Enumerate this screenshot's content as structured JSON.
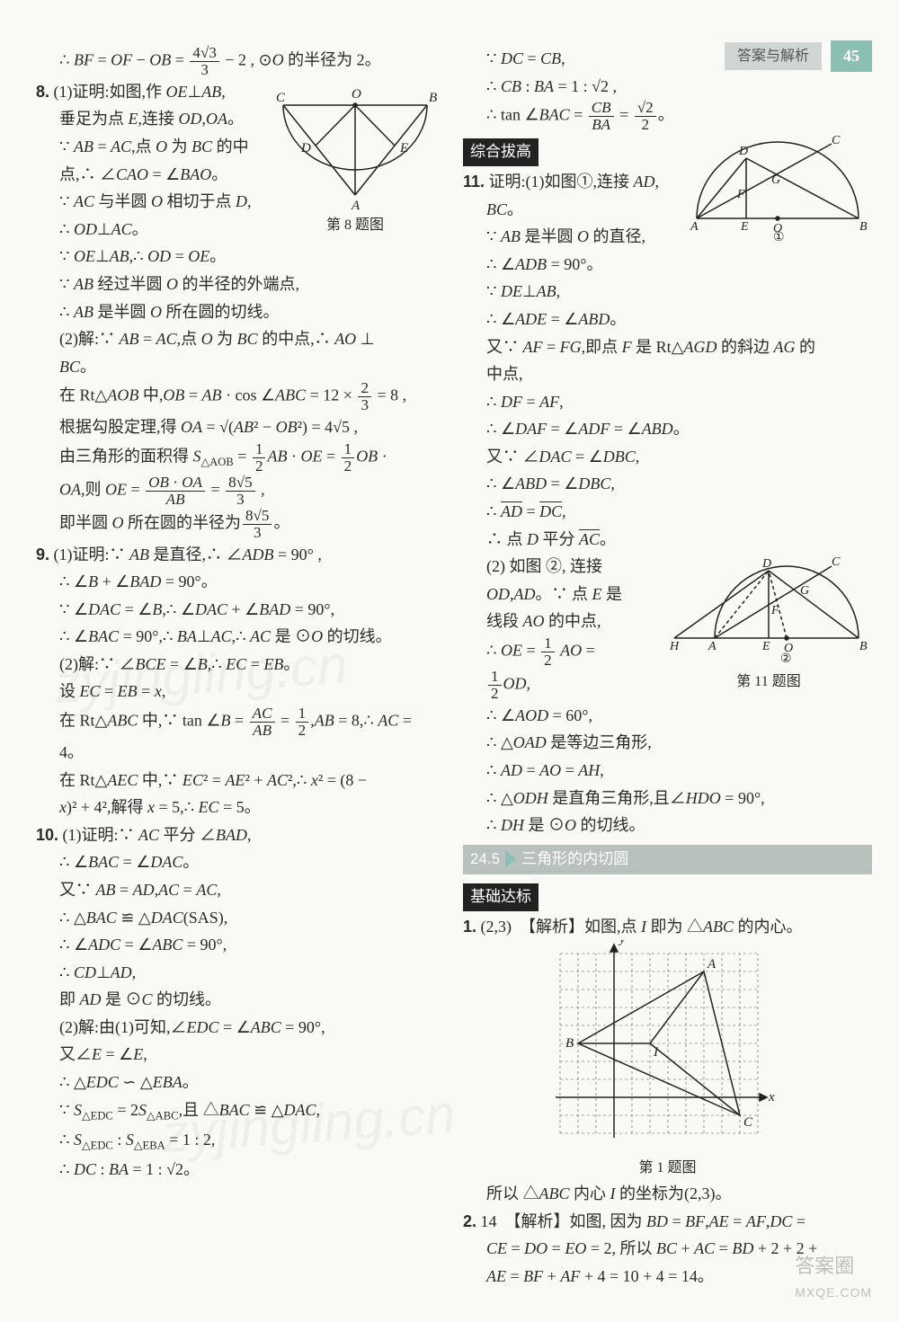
{
  "header": {
    "label": "答案与解析",
    "page": "45"
  },
  "watermarks": {
    "text": "zyjingling.cn"
  },
  "logo": {
    "main": "答案圈",
    "site": "MXQE.COM"
  },
  "sections": {
    "comprehensive": "综合拔高",
    "s245_num": "24.5",
    "s245_title": "三角形的内切圆",
    "basic": "基础达标"
  },
  "figs": {
    "q8_cap": "第 8 题图",
    "q8": {
      "labels": {
        "A": "A",
        "B": "B",
        "C": "C",
        "D": "D",
        "E": "E",
        "O": "O"
      },
      "colors": {
        "stroke": "#222"
      }
    },
    "q11_cap": "第 11 题图",
    "q11a": {
      "labels": {
        "A": "A",
        "B": "B",
        "C": "C",
        "D": "D",
        "E": "E",
        "F": "F",
        "G": "G",
        "O": "O",
        "num": "①"
      },
      "colors": {
        "stroke": "#222"
      }
    },
    "q11b": {
      "labels": {
        "A": "A",
        "B": "B",
        "C": "C",
        "D": "D",
        "E": "E",
        "F": "F",
        "G": "G",
        "H": "H",
        "O": "O",
        "num": "②"
      },
      "colors": {
        "stroke": "#222"
      }
    },
    "q1_cap": "第 1 题图",
    "q1": {
      "labels": {
        "A": "A",
        "B": "B",
        "C": "C",
        "I": "I",
        "x": "x",
        "y": "y"
      },
      "points": {
        "A": [
          5,
          7
        ],
        "B": [
          -2,
          3
        ],
        "C": [
          7,
          -1
        ],
        "I": [
          2,
          3
        ]
      },
      "grid": {
        "xmin": -3,
        "xmax": 8,
        "ymin": -2,
        "ymax": 8,
        "dash": "3,3",
        "color": "#555"
      }
    }
  },
  "left": [
    "∴ <i>BF</i> = <i>OF</i> − <i>OB</i> = <span class='frac'><span class='n'>4√3</span><span class='d'>3</span></span> − 2 , ⊙<i>O</i> 的半径为 2。",
    "<span class='q-num'>8.</span> (1)证明:如图,作 <i>OE</i>⊥<i>AB</i>,",
    "垂足为点 <i>E</i>,连接 <i>OD</i>,<i>OA</i>。",
    "∵ <i>AB</i> = <i>AC</i>,点 <i>O</i> 为 <i>BC</i> 的中",
    "点,∴ ∠<i>CAO</i> = ∠<i>BAO</i>。",
    "∵ <i>AC</i> 与半圆 <i>O</i> 相切于点 <i>D</i>,",
    "∴ <i>OD</i>⊥<i>AC</i>。",
    "∵ <i>OE</i>⊥<i>AB</i>,∴ <i>OD</i> = <i>OE</i>。",
    "∵ <i>AB</i> 经过半圆 <i>O</i> 的半径的外端点,",
    "∴ <i>AB</i> 是半圆 <i>O</i> 所在圆的切线。",
    "(2)解:∵ <i>AB</i> = <i>AC</i>,点 <i>O</i> 为 <i>BC</i> 的中点,∴ <i>AO</i> ⊥",
    "<i>BC</i>。",
    "在 Rt△<i>AOB</i> 中,<i>OB</i> = <i>AB</i> · cos ∠<i>ABC</i> = 12 × <span class='frac'><span class='n'>2</span><span class='d'>3</span></span> = 8 ,",
    "根据勾股定理,得 <i>OA</i> = √(<i>AB</i>² − <i>OB</i>²) = 4√5 ,",
    "由三角形的面积得 <i>S</i><sub>△AOB</sub> = <span class='frac'><span class='n'>1</span><span class='d'>2</span></span><i>AB</i> · <i>OE</i> = <span class='frac'><span class='n'>1</span><span class='d'>2</span></span><i>OB</i> ·",
    "<i>OA</i>,则 <i>OE</i> = <span class='frac'><span class='n'><i>OB</i> · <i>OA</i></span><span class='d'><i>AB</i></span></span> = <span class='frac'><span class='n'>8√5</span><span class='d'>3</span></span> ,",
    "即半圆 <i>O</i> 所在圆的半径为<span class='frac'><span class='n'>8√5</span><span class='d'>3</span></span>。",
    "<span class='q-num'>9.</span> (1)证明:∵ <i>AB</i> 是直径,∴ ∠<i>ADB</i> = 90° ,",
    "∴ ∠<i>B</i> + ∠<i>BAD</i> = 90°。",
    "∵ ∠<i>DAC</i> = ∠<i>B</i>,∴ ∠<i>DAC</i> + ∠<i>BAD</i> = 90°,",
    "∴ ∠<i>BAC</i> = 90°,∴ <i>BA</i>⊥<i>AC</i>,∴ <i>AC</i> 是 ⊙<i>O</i> 的切线。",
    "(2)解:∵ ∠<i>BCE</i> = ∠<i>B</i>,∴ <i>EC</i> = <i>EB</i>。",
    "设 <i>EC</i> = <i>EB</i> = <i>x</i>,",
    "在 Rt△<i>ABC</i> 中,∵ tan ∠<i>B</i> = <span class='frac'><span class='n'><i>AC</i></span><span class='d'><i>AB</i></span></span> = <span class='frac'><span class='n'>1</span><span class='d'>2</span></span>,<i>AB</i> = 8,∴ <i>AC</i> =",
    "4。",
    "在 Rt△<i>AEC</i> 中,∵ <i>EC</i>² = <i>AE</i>² + <i>AC</i>²,∴ <i>x</i>² = (8 −",
    "<i>x</i>)² + 4²,解得 <i>x</i> = 5,∴ <i>EC</i> = 5。",
    "<span class='q-num'>10.</span> (1)证明:∵ <i>AC</i> 平分 ∠<i>BAD</i>,",
    "∴ ∠<i>BAC</i> = ∠<i>DAC</i>。",
    "又∵ <i>AB</i> = <i>AD</i>,<i>AC</i> = <i>AC</i>,",
    "∴ △<i>BAC</i> ≌ △<i>DAC</i>(SAS),",
    "∴ ∠<i>ADC</i> = ∠<i>ABC</i> = 90°,",
    "∴ <i>CD</i>⊥<i>AD</i>,",
    "即 <i>AD</i> 是 ⊙<i>C</i> 的切线。",
    "(2)解:由(1)可知,∠<i>EDC</i> = ∠<i>ABC</i> = 90°,",
    "又∠<i>E</i> = ∠<i>E</i>,",
    "∴ △<i>EDC</i> ∽ △<i>EBA</i>。",
    "∵ <i>S</i><sub>△EDC</sub> = 2<i>S</i><sub>△ABC</sub>,且 △<i>BAC</i> ≌ △<i>DAC</i>,",
    "∴ <i>S</i><sub>△EDC</sub> : <i>S</i><sub>△EBA</sub> = 1 : 2,",
    "∴ <i>DC</i> : <i>BA</i> = 1 : √2。"
  ],
  "right": [
    "∵ <i>DC</i> = <i>CB</i>,",
    "∴ <i>CB</i> : <i>BA</i> = 1 : √2 ,",
    "∴ tan ∠<i>BAC</i> = <span class='frac'><span class='n'><i>CB</i></span><span class='d'><i>BA</i></span></span> = <span class='frac'><span class='n'>√2</span><span class='d'>2</span></span>。",
    "<span class='q-num'>11.</span> 证明:(1)如图①,连接 <i>AD</i>,",
    "<i>BC</i>。",
    "∵ <i>AB</i> 是半圆 <i>O</i> 的直径,",
    "∴ ∠<i>ADB</i> = 90°。",
    "∵ <i>DE</i>⊥<i>AB</i>,",
    "∴ ∠<i>ADE</i> = ∠<i>ABD</i>。",
    "又∵ <i>AF</i> = <i>FG</i>,即点 <i>F</i> 是 Rt△<i>AGD</i> 的斜边 <i>AG</i> 的",
    "中点,",
    "∴ <i>DF</i> = <i>AF</i>,",
    "∴ ∠<i>DAF</i> = ∠<i>ADF</i> = ∠<i>ABD</i>。",
    "又∵ ∠<i>DAC</i> = ∠<i>DBC</i>,",
    "∴ ∠<i>ABD</i> = ∠<i>DBC</i>,",
    "∴ <span class='arc'><i>AD</i></span> = <span class='arc'><i>DC</i></span>,",
    "∴ 点 <i>D</i> 平分 <span class='arc'><i>AC</i></span>。",
    "(2) 如图 ②, 连接",
    "<i>OD</i>,<i>AD</i>。∵ 点 <i>E</i> 是",
    "线段 <i>AO</i> 的中点,",
    "∴ <i>OE</i> = <span class='frac'><span class='n'>1</span><span class='d'>2</span></span> <i>AO</i> =",
    "<span class='frac'><span class='n'>1</span><span class='d'>2</span></span><i>OD</i>,",
    "∴ ∠<i>AOD</i> = 60°,",
    "∴ △<i>OAD</i> 是等边三角形,",
    "∴ <i>AD</i> = <i>AO</i> = <i>AH</i>,",
    "∴ △<i>ODH</i> 是直角三角形,且∠<i>HDO</i> = 90°,",
    "∴ <i>DH</i> 是 ⊙<i>O</i> 的切线。",
    "<span class='q-num'>1.</span> (2,3)　【解析】如图,点 <i>I</i> 即为 △<i>ABC</i> 的内心。",
    "所以 △<i>ABC</i> 内心 <i>I</i> 的坐标为(2,3)。",
    "<span class='q-num'>2.</span> 14　【解析】如图, 因为 <i>BD</i> = <i>BF</i>,<i>AE</i> = <i>AF</i>,<i>DC</i> =",
    "<i>CE</i> = <i>DO</i> = <i>EO</i> = 2, 所以 <i>BC</i> + <i>AC</i> = <i>BD</i> + 2 + 2 +",
    "<i>AE</i> = <i>BF</i> + <i>AF</i> + 4 = 10 + 4 = 14。"
  ]
}
